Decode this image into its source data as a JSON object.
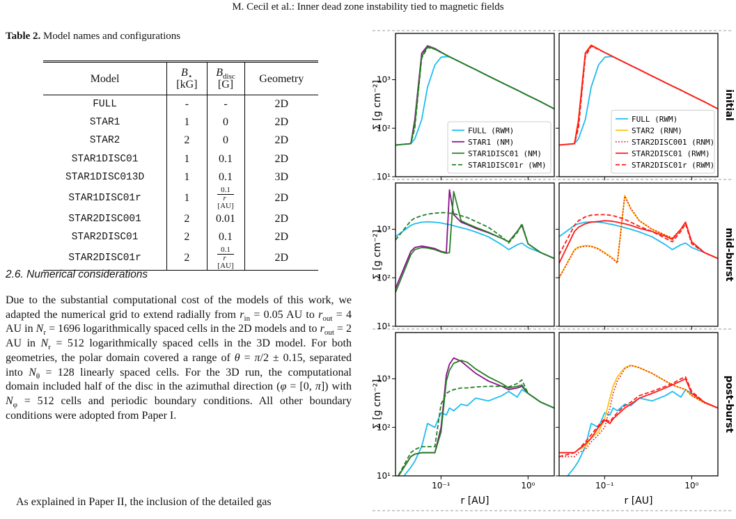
{
  "header": {
    "running_title": "M. Cecil et al.: Inner dead zone instability tied to magnetic fields"
  },
  "table": {
    "label": "Table 2.",
    "caption": "Model names and configurations",
    "columns": [
      {
        "text": "Model"
      },
      {
        "symbol": "B",
        "sub": "⋆",
        "unit": "[kG]"
      },
      {
        "symbol": "B",
        "sub": "disc",
        "unit": "[G]"
      },
      {
        "text": "Geometry"
      }
    ],
    "rows": [
      [
        "FULL",
        "-",
        "-",
        "2D"
      ],
      [
        "STAR1",
        "1",
        "0",
        "2D"
      ],
      [
        "STAR2",
        "2",
        "0",
        "2D"
      ],
      [
        "STAR1DISC01",
        "1",
        "0.1",
        "2D"
      ],
      [
        "STAR1DISC013D",
        "1",
        "0.1",
        "3D"
      ],
      [
        "STAR1DISC01r",
        "1",
        {
          "num": "0.1",
          "den": [
            "r",
            "[AU]"
          ]
        },
        "2D"
      ],
      [
        "STAR2DISC001",
        "2",
        "0.01",
        "2D"
      ],
      [
        "STAR2DISC01",
        "2",
        "0.1",
        "2D"
      ],
      [
        "STAR2DISC01r",
        "2",
        {
          "num": "0.1",
          "den": [
            "r",
            "[AU]"
          ]
        },
        "2D"
      ]
    ]
  },
  "section": "2.6. Numerical considerations",
  "paragraphs": [
    [
      "Due to the substantial computational cost of the models of this work, we adapted the numerical grid to extend radially from ",
      {
        "i": "r"
      },
      {
        "sub": "in"
      },
      " = 0.05 AU to ",
      {
        "i": "r"
      },
      {
        "sub": "out"
      },
      " = 4 AU in ",
      {
        "i": "N"
      },
      {
        "sub": "r"
      },
      " = 1696 logarithmically spaced cells in the 2D models and to ",
      {
        "i": "r"
      },
      {
        "sub": "out"
      },
      " = 2 AU in ",
      {
        "i": "N"
      },
      {
        "sub": "r"
      },
      " = 512 logarithmically spaced cells in the 3D model. For both geometries, the polar domain covered a range of ",
      {
        "i": "θ"
      },
      " = ",
      {
        "i": "π"
      },
      "/2 ± 0.15, separated into ",
      {
        "i": "N"
      },
      {
        "sub": "θ"
      },
      " = 128 linearly spaced cells. For the 3D run, the computational domain included half of the disc in the azimuthal direction (",
      {
        "i": "φ"
      },
      " = [0, ",
      {
        "i": "π"
      },
      "]) with ",
      {
        "i": "N"
      },
      {
        "sub": "φ"
      },
      " = 512 cells and periodic boundary conditions. All other boundary conditions were adopted from Paper I."
    ],
    [
      "As explained in Paper II, the inclusion of the detailed gas"
    ]
  ],
  "chart_data": {
    "type": "line",
    "log_x": true,
    "log_y": true,
    "xlabel": "r [AU]",
    "ylabel": "Σ [g cm⁻²]",
    "xlim": [
      0.03,
      2
    ],
    "ylim": [
      10,
      9000
    ],
    "xticks": [
      {
        "value": 0.1,
        "label": "10⁻¹"
      },
      {
        "value": 1,
        "label": "10⁰"
      }
    ],
    "yticks": [
      {
        "value": 10,
        "label": "10¹"
      },
      {
        "value": 100,
        "label": "10²"
      },
      {
        "value": 1000,
        "label": "10³"
      }
    ],
    "row_labels": [
      "initial",
      "mid-burst",
      "post-burst"
    ],
    "x": [
      0.03,
      0.045,
      0.05,
      0.06,
      0.07,
      0.085,
      0.1,
      0.115,
      0.125,
      0.14,
      0.17,
      0.2,
      0.25,
      0.35,
      0.5,
      0.6,
      0.75,
      0.85,
      1.0,
      1.4,
      2.0
    ],
    "columns": [
      {
        "series": [
          {
            "name": "FULL (RWM)",
            "color": "#1cbcf0",
            "dash": "solid"
          },
          {
            "name": "STAR1 (NM)",
            "color": "#8a0f8c",
            "dash": "solid"
          },
          {
            "name": "STAR1DISC01 (NM)",
            "color": "#237f23",
            "dash": "solid"
          },
          {
            "name": "STAR1DISC01r (WM)",
            "color": "#237f23",
            "dash": "dashed"
          }
        ],
        "panels": [
          [
            [
              45,
              48,
              60,
              150,
              700,
              2000,
              2900,
              3000,
              2950,
              2690,
              2260,
              1960,
              1610,
              1190,
              870,
              740,
              610,
              545,
              470,
              350,
              250
            ],
            [
              45,
              48,
              150,
              3500,
              5000,
              4400,
              3700,
              3210,
              2980,
              2690,
              2260,
              1960,
              1610,
              1190,
              870,
              740,
              610,
              545,
              470,
              350,
              250
            ],
            [
              45,
              48,
              120,
              3000,
              4800,
              4300,
              3650,
              3210,
              2980,
              2690,
              2260,
              1960,
              1610,
              1190,
              870,
              740,
              610,
              545,
              470,
              350,
              250
            ],
            [
              45,
              48,
              100,
              2800,
              4600,
              4250,
              3630,
              3210,
              2980,
              2690,
              2260,
              1960,
              1610,
              1190,
              870,
              740,
              610,
              545,
              470,
              350,
              250
            ]
          ],
          [
            [
              700,
              1200,
              1300,
              1400,
              1420,
              1400,
              1350,
              1280,
              1250,
              1180,
              1080,
              1000,
              880,
              700,
              480,
              380,
              480,
              520,
              420,
              330,
              250
            ],
            [
              60,
              350,
              420,
              450,
              430,
              400,
              350,
              330,
              6500,
              2000,
              1400,
              1250,
              1050,
              850,
              650,
              550,
              900,
              1200,
              500,
              330,
              250
            ],
            [
              50,
              300,
              380,
              420,
              410,
              380,
              340,
              320,
              330,
              6000,
              1500,
              1300,
              1100,
              870,
              650,
              550,
              900,
              1250,
              500,
              330,
              250
            ],
            [
              600,
              1500,
              1700,
              1900,
              2050,
              2150,
              2200,
              2200,
              2150,
              2100,
              1900,
              1750,
              1450,
              1100,
              700,
              520,
              850,
              1300,
              500,
              330,
              250
            ]
          ],
          [
            [
              6,
              15,
              20,
              40,
              120,
              100,
              200,
              180,
              250,
              220,
              300,
              280,
              400,
              350,
              450,
              550,
              420,
              600,
              500,
              330,
              250
            ],
            [
              8,
              25,
              28,
              30,
              30,
              30,
              100,
              1200,
              2000,
              2700,
              2300,
              1800,
              1300,
              900,
              700,
              600,
              650,
              700,
              500,
              330,
              250
            ],
            [
              8,
              25,
              28,
              30,
              30,
              30,
              80,
              900,
              1500,
              2100,
              2400,
              2200,
              1600,
              1100,
              800,
              650,
              700,
              750,
              500,
              330,
              250
            ],
            [
              8,
              30,
              35,
              40,
              40,
              40,
              300,
              500,
              550,
              600,
              650,
              650,
              680,
              700,
              700,
              680,
              800,
              950,
              500,
              330,
              250
            ]
          ]
        ]
      },
      {
        "series": [
          {
            "name": "FULL (RWM)",
            "color": "#1cbcf0",
            "dash": "solid"
          },
          {
            "name": "STAR2 (RNM)",
            "color": "#ffc20e",
            "dash": "solid"
          },
          {
            "name": "STAR2DISC001 (RNM)",
            "color": "#e8141b",
            "dash": "dotted"
          },
          {
            "name": "STAR2DISC01 (RWM)",
            "color": "#ff1a1a",
            "dash": "solid"
          },
          {
            "name": "STAR2DISC01r (RWM)",
            "color": "#ff1a1a",
            "dash": "dashed"
          }
        ],
        "panels": [
          [
            [
              45,
              48,
              60,
              150,
              700,
              2000,
              2900,
              3000,
              2950,
              2690,
              2260,
              1960,
              1610,
              1190,
              870,
              740,
              610,
              545,
              470,
              350,
              250
            ],
            [
              45,
              48,
              150,
              3600,
              5200,
              4300,
              3630,
              3210,
              2980,
              2690,
              2260,
              1960,
              1610,
              1190,
              870,
              740,
              610,
              545,
              470,
              350,
              250
            ],
            [
              45,
              48,
              120,
              3300,
              5000,
              4210,
              3630,
              3210,
              2980,
              2690,
              2260,
              1960,
              1610,
              1190,
              870,
              740,
              610,
              545,
              470,
              350,
              250
            ],
            [
              45,
              48,
              140,
              3500,
              5100,
              4250,
              3630,
              3210,
              2980,
              2690,
              2260,
              1960,
              1610,
              1190,
              870,
              740,
              610,
              545,
              470,
              350,
              250
            ],
            [
              45,
              48,
              100,
              3000,
              4900,
              4210,
              3630,
              3210,
              2980,
              2690,
              2260,
              1960,
              1610,
              1190,
              870,
              740,
              610,
              545,
              470,
              350,
              250
            ]
          ],
          [
            [
              700,
              1200,
              1300,
              1400,
              1420,
              1400,
              1350,
              1280,
              1250,
              1180,
              1080,
              1000,
              880,
              700,
              480,
              380,
              480,
              520,
              420,
              330,
              250
            ],
            [
              100,
              380,
              430,
              460,
              450,
              400,
              330,
              280,
              250,
              210,
              5000,
              2600,
              1500,
              1000,
              750,
              650,
              1000,
              1400,
              550,
              330,
              250
            ],
            [
              100,
              370,
              420,
              450,
              440,
              390,
              320,
              270,
              240,
              200,
              4800,
              2700,
              1500,
              1000,
              760,
              660,
              1000,
              1400,
              550,
              330,
              250
            ],
            [
              200,
              900,
              1100,
              1300,
              1400,
              1450,
              1500,
              1480,
              1450,
              1400,
              1300,
              1200,
              1050,
              900,
              720,
              620,
              1000,
              1400,
              550,
              330,
              250
            ],
            [
              300,
              1200,
              1500,
              1800,
              1950,
              2000,
              2000,
              1950,
              1900,
              1800,
              1600,
              1400,
              1150,
              900,
              650,
              550,
              900,
              1300,
              500,
              330,
              250
            ]
          ],
          [
            [
              6,
              15,
              20,
              40,
              120,
              100,
              200,
              180,
              250,
              220,
              300,
              280,
              400,
              350,
              450,
              550,
              420,
              600,
              500,
              330,
              250
            ],
            [
              30,
              30,
              35,
              40,
              60,
              80,
              150,
              400,
              700,
              1100,
              1700,
              1900,
              1700,
              1300,
              900,
              750,
              650,
              600,
              450,
              320,
              250
            ],
            [
              25,
              25,
              30,
              35,
              50,
              70,
              100,
              250,
              500,
              900,
              1600,
              1900,
              1700,
              1300,
              900,
              750,
              650,
              600,
              450,
              320,
              250
            ],
            [
              30,
              30,
              35,
              45,
              60,
              100,
              140,
              120,
              150,
              180,
              250,
              300,
              400,
              500,
              650,
              750,
              900,
              1000,
              500,
              330,
              250
            ],
            [
              25,
              30,
              35,
              50,
              70,
              110,
              150,
              130,
              160,
              200,
              280,
              330,
              450,
              550,
              700,
              800,
              1000,
              1100,
              550,
              330,
              250
            ]
          ]
        ]
      }
    ]
  }
}
